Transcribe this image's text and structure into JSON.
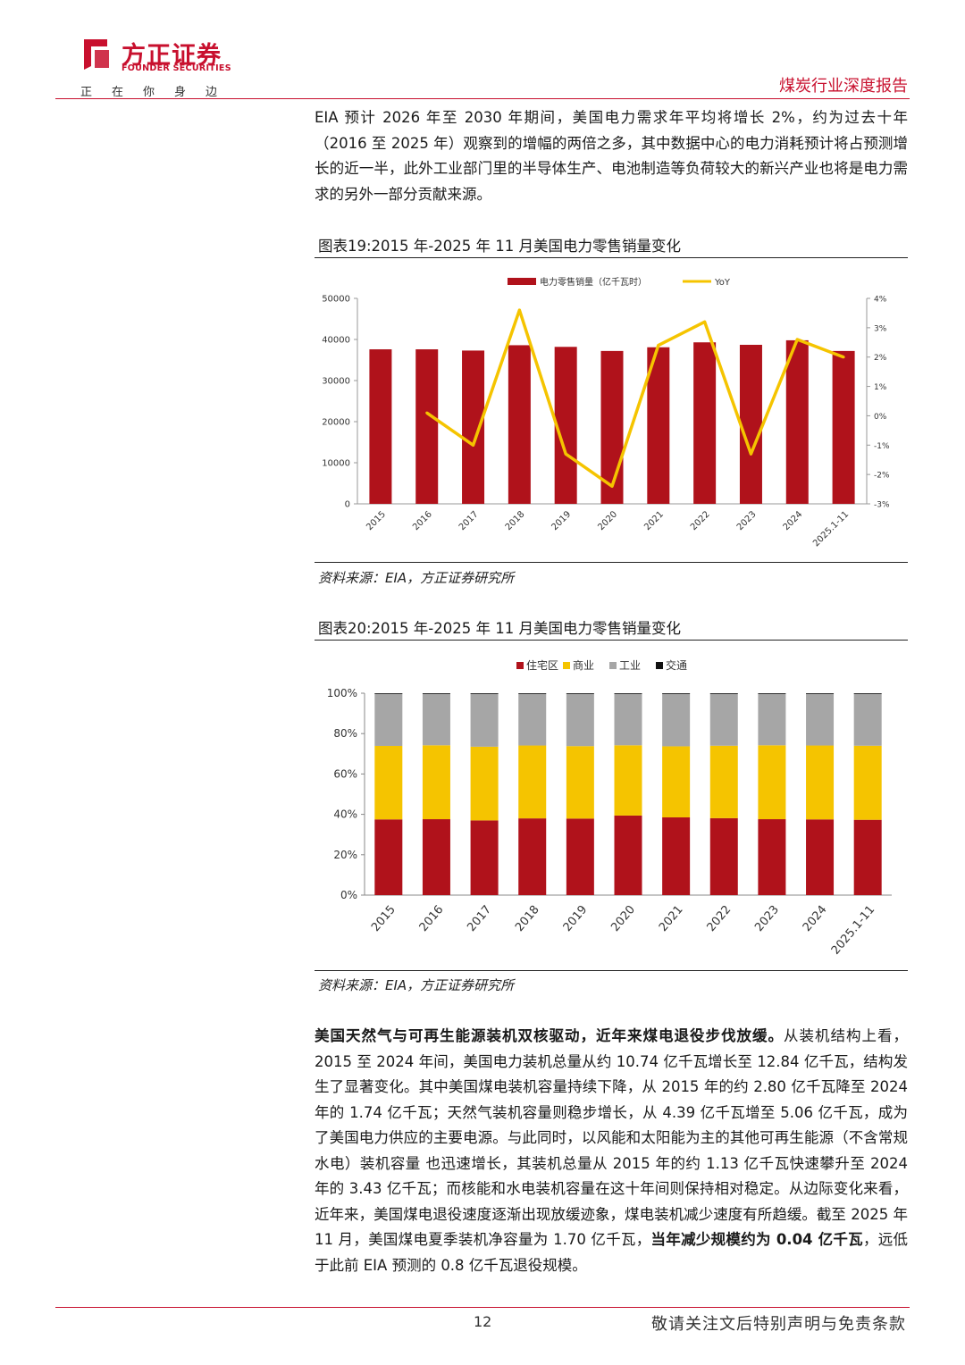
{
  "header": {
    "brand_cn": "方正证券",
    "brand_en": "FOUNDER SECURITIES",
    "slogan": "正在你身边",
    "report_type": "煤炭行业深度报告",
    "brand_color": "#c8102e",
    "logo_icon": "founder-logo-icon"
  },
  "intro": {
    "text": "EIA 预计 2026 年至 2030 年期间，美国电力需求年平均将增长 2%，约为过去十年（2016 至 2025 年）观察到的增幅的两倍之多，其中数据中心的电力消耗预计将占预测增长的近一半，此外工业部门里的半导体生产、电池制造等负荷较大的新兴产业也将是电力需求的另外一部分贡献来源。"
  },
  "chart1": {
    "title": "图表19:2015 年-2025 年 11 月美国电力零售销量变化",
    "source": "资料来源：EIA，方正证券研究所"
  },
  "chart2": {
    "title": "图表20:2015 年-2025 年 11 月美国电力零售销量变化",
    "source": "资料来源：EIA，方正证券研究所"
  },
  "chart_data": [
    {
      "type": "bar",
      "categories": [
        "2015",
        "2016",
        "2017",
        "2018",
        "2019",
        "2020",
        "2021",
        "2022",
        "2023",
        "2024",
        "2025.1-11"
      ],
      "series": [
        {
          "name": "电力零售销量（亿千瓦时）",
          "type": "bar",
          "axis": "left",
          "color": "#b0121b",
          "values": [
            37600,
            37600,
            37300,
            38600,
            38200,
            37200,
            38100,
            39300,
            38700,
            39800,
            37200
          ]
        },
        {
          "name": "YoY",
          "type": "line",
          "axis": "right",
          "color": "#f5c400",
          "values": [
            null,
            0.1,
            -1.0,
            3.6,
            -1.3,
            -2.4,
            2.4,
            3.2,
            -1.3,
            2.6,
            2.0
          ]
        }
      ],
      "y_left": {
        "min": 0,
        "max": 50000,
        "ticks": [
          0,
          10000,
          20000,
          30000,
          40000,
          50000
        ]
      },
      "y_right": {
        "min": -3,
        "max": 4,
        "ticks": [
          "-3%",
          "-2%",
          "-1%",
          "0%",
          "1%",
          "2%",
          "3%",
          "4%"
        ]
      },
      "legend_position": "top-center",
      "grid": false
    },
    {
      "type": "bar",
      "stacked": "percent",
      "categories": [
        "2015",
        "2016",
        "2017",
        "2018",
        "2019",
        "2020",
        "2021",
        "2022",
        "2023",
        "2024",
        "2025.1-11"
      ],
      "series": [
        {
          "name": "住宅区",
          "color": "#b0121b",
          "values": [
            37.5,
            37.6,
            37.0,
            38.0,
            37.9,
            39.4,
            38.5,
            38.1,
            37.6,
            37.5,
            37.3
          ]
        },
        {
          "name": "商业",
          "color": "#f5c400",
          "values": [
            36.4,
            36.6,
            36.5,
            36.1,
            35.9,
            34.8,
            35.2,
            35.9,
            36.6,
            36.6,
            36.7
          ]
        },
        {
          "name": "工业",
          "color": "#a6a6a6",
          "values": [
            26.0,
            25.7,
            26.4,
            25.8,
            26.1,
            25.7,
            26.2,
            25.9,
            25.7,
            25.8,
            25.9
          ]
        },
        {
          "name": "交通",
          "color": "#111111",
          "values": [
            0.1,
            0.1,
            0.1,
            0.1,
            0.1,
            0.1,
            0.1,
            0.1,
            0.1,
            0.1,
            0.1
          ]
        }
      ],
      "y": {
        "min": 0,
        "max": 100,
        "ticks": [
          "0%",
          "20%",
          "40%",
          "60%",
          "80%",
          "100%"
        ]
      },
      "legend_position": "top-center",
      "grid": false
    }
  ],
  "body": {
    "lead_bold": "美国天然气与可再生能源装机双核驱动，近年来煤电退役步伐放缓。",
    "text_before_bold": "从装机结构上看， 2015 至 2024 年间，美国电力装机总量从约 10.74 亿千瓦增长至 12.84 亿千瓦，结构发生了显著变化。其中美国煤电装机容量持续下降，从 2015 年的约 2.80 亿千瓦降至 2024 年的 1.74 亿千瓦；天然气装机容量则稳步增长，从 4.39 亿千瓦增至 5.06 亿千瓦，成为了美国电力供应的主要电源。与此同时，以风能和太阳能为主的其他可再生能源（不含常规水电）装机容量 也迅速增长，其装机总量从 2015 年的约 1.13 亿千瓦快速攀升至 2024 年的 3.43 亿千瓦；而核能和水电装机容量在这十年间则保持相对稳定。从边际变化来看，近年来，美国煤电退役速度逐渐出现放缓迹象，煤电装机减少速度有所趋缓。截至 2025 年 11 月，美国煤电夏季装机净容量为 1.70 亿千瓦，",
    "inline_bold": "当年减少规模约为 0.04 亿千瓦",
    "text_after_bold": "，远低于此前 EIA 预测的 0.8 亿千瓦退役规模。"
  },
  "footer": {
    "page_number": "12",
    "disclaimer": "敬请关注文后特别声明与免责条款"
  }
}
